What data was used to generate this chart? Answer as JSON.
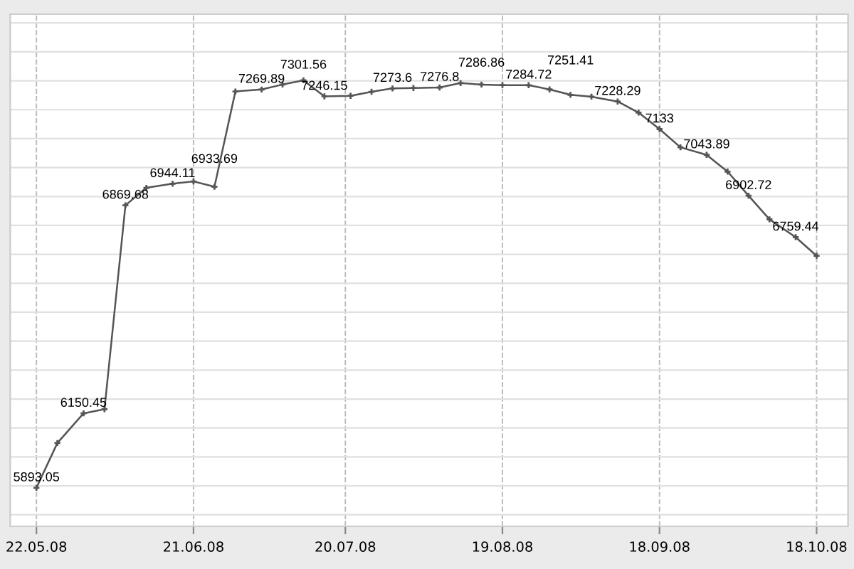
{
  "chart_data": {
    "type": "line",
    "x": [
      "2008-05-22",
      "2008-05-26",
      "2008-05-31",
      "2008-06-04",
      "2008-06-08",
      "2008-06-12",
      "2008-06-17",
      "2008-06-21",
      "2008-06-25",
      "2008-06-29",
      "2008-07-04",
      "2008-07-08",
      "2008-07-12",
      "2008-07-16",
      "2008-07-21",
      "2008-07-25",
      "2008-07-29",
      "2008-08-02",
      "2008-08-07",
      "2008-08-11",
      "2008-08-15",
      "2008-08-19",
      "2008-08-24",
      "2008-08-28",
      "2008-09-01",
      "2008-09-05",
      "2008-09-10",
      "2008-09-14",
      "2008-09-18",
      "2008-09-22",
      "2008-09-27",
      "2008-10-01",
      "2008-10-05",
      "2008-10-09",
      "2008-10-14",
      "2008-10-18"
    ],
    "series": [
      {
        "color": "#555555",
        "values": [
          5893.05,
          6048,
          6150.45,
          6165,
          6869.68,
          6930,
          6944.11,
          6952,
          6933.69,
          7263,
          7269.89,
          7287,
          7301.56,
          7246.15,
          7248,
          7262,
          7273.6,
          7275,
          7276.8,
          7292,
          7286.86,
          7285,
          7284.72,
          7270,
          7251.41,
          7245,
          7228.29,
          7190,
          7133,
          7070,
          7043.89,
          6986,
          6902.72,
          6821,
          6759.44,
          6695
        ],
        "value_labels": [
          "5893.05",
          null,
          "6150.45",
          null,
          "6869.68",
          null,
          "6944.11",
          null,
          "6933.69",
          null,
          "7269.89",
          null,
          "7301.56",
          "7246.15",
          null,
          null,
          "7273.6",
          null,
          "7276.8",
          null,
          "7286.86",
          null,
          "7284.72",
          null,
          "7251.41",
          null,
          "7228.29",
          null,
          "7133",
          null,
          "7043.89",
          null,
          "6902.72",
          null,
          "6759.44",
          null
        ]
      }
    ],
    "xlim": [
      "2008-05-17",
      "2008-10-24"
    ],
    "xticks": [
      {
        "value": "2008-05-22",
        "label": "22.05.08"
      },
      {
        "value": "2008-06-21",
        "label": "21.06.08"
      },
      {
        "value": "2008-07-20",
        "label": "20.07.08"
      },
      {
        "value": "2008-08-19",
        "label": "19.08.08"
      },
      {
        "value": "2008-09-18",
        "label": "18.09.08"
      },
      {
        "value": "2008-10-18",
        "label": "18.10.08"
      }
    ],
    "ylim": [
      5760,
      7530
    ],
    "yticks": [
      {
        "value": 5800,
        "label": null
      },
      {
        "value": 5900,
        "label": null
      },
      {
        "value": 6000,
        "label": null
      },
      {
        "value": 6100,
        "label": null
      },
      {
        "value": 6200,
        "label": null
      },
      {
        "value": 6300,
        "label": null
      },
      {
        "value": 6400,
        "label": null
      },
      {
        "value": 6500,
        "label": null
      },
      {
        "value": 6600,
        "label": null
      },
      {
        "value": 6700,
        "label": null
      },
      {
        "value": 6800,
        "label": null
      },
      {
        "value": 6900,
        "label": null
      },
      {
        "value": 7000,
        "label": null
      },
      {
        "value": 7100,
        "label": null
      },
      {
        "value": 7200,
        "label": null
      },
      {
        "value": 7300,
        "label": null
      },
      {
        "value": 7400,
        "label": null
      },
      {
        "value": 7500,
        "label": null
      }
    ],
    "tick_labels": "x",
    "grid": true,
    "marker": "cross",
    "line_style": "solid"
  }
}
